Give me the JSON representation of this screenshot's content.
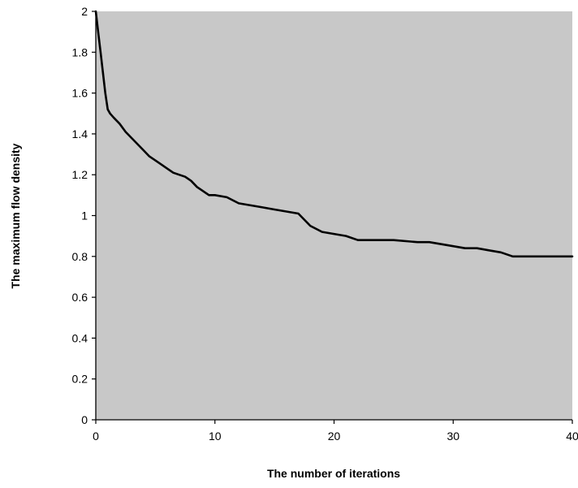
{
  "chart_data": {
    "type": "line",
    "title": "",
    "xlabel": "The number of iterations",
    "ylabel": "The maximum flow density",
    "xlim": [
      0,
      40
    ],
    "ylim": [
      0,
      2
    ],
    "xticks": [
      "0",
      "10",
      "20",
      "30",
      "40"
    ],
    "yticks": [
      "0",
      "0.2",
      "0.4",
      "0.6",
      "0.8",
      "1",
      "1.2",
      "1.4",
      "1.6",
      "1.8",
      "2"
    ],
    "grid": false,
    "legend": "none",
    "colors": {
      "plot_background": "#c8c8c8",
      "line": "#000000"
    },
    "series": [
      {
        "x": [
          0,
          0.2,
          0.4,
          0.6,
          0.8,
          1.0,
          1.2,
          1.5,
          2,
          2.5,
          3,
          3.5,
          4,
          4.5,
          5,
          5.5,
          6,
          6.5,
          7,
          7.5,
          8,
          8.5,
          9,
          9.5,
          10,
          11,
          12,
          13,
          14,
          15,
          16,
          17,
          17.5,
          18,
          19,
          20,
          21,
          22,
          23,
          25,
          27,
          28,
          29,
          30,
          31,
          32,
          33,
          34,
          35,
          36,
          40
        ],
        "y": [
          2.0,
          1.9,
          1.8,
          1.7,
          1.6,
          1.52,
          1.5,
          1.48,
          1.45,
          1.41,
          1.38,
          1.35,
          1.32,
          1.29,
          1.27,
          1.25,
          1.23,
          1.21,
          1.2,
          1.19,
          1.17,
          1.14,
          1.12,
          1.1,
          1.1,
          1.09,
          1.06,
          1.05,
          1.04,
          1.03,
          1.02,
          1.01,
          0.98,
          0.95,
          0.92,
          0.91,
          0.9,
          0.88,
          0.88,
          0.88,
          0.87,
          0.87,
          0.86,
          0.85,
          0.84,
          0.84,
          0.83,
          0.82,
          0.8,
          0.8,
          0.8
        ]
      }
    ]
  }
}
